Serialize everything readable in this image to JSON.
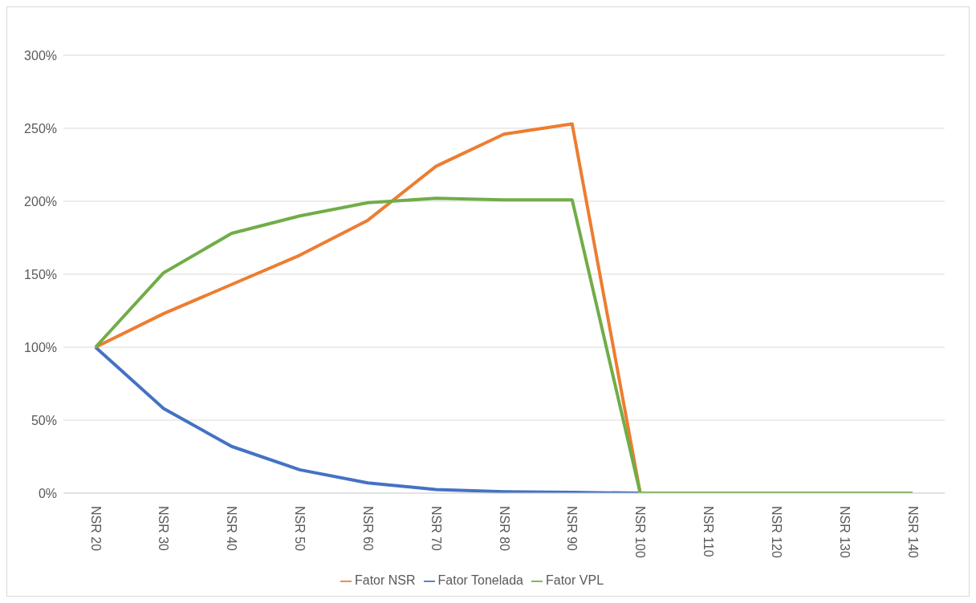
{
  "chart_data": {
    "type": "line",
    "categories": [
      "NSR 20",
      "NSR 30",
      "NSR 40",
      "NSR 50",
      "NSR 60",
      "NSR 70",
      "NSR 80",
      "NSR 90",
      "NSR 100",
      "NSR 110",
      "NSR 120",
      "NSR 130",
      "NSR 140"
    ],
    "series": [
      {
        "name": "Fator Tonelada",
        "color": "#4472c4",
        "values": [
          100,
          58,
          32,
          16,
          7,
          2.5,
          1,
          0.5,
          0,
          null,
          null,
          null,
          null
        ]
      },
      {
        "name": "Fator NSR",
        "color": "#ed7d31",
        "values": [
          100,
          123,
          143,
          163,
          187,
          224,
          246,
          253,
          0,
          null,
          null,
          null,
          null
        ]
      },
      {
        "name": "Fator VPL",
        "color": "#70ad47",
        "values": [
          100,
          151,
          178,
          190,
          199,
          202,
          201,
          201,
          0,
          0,
          0,
          0,
          0
        ]
      }
    ],
    "ylim": [
      0,
      300
    ],
    "yticks": [
      {
        "value": 0,
        "label": "0%"
      },
      {
        "value": 50,
        "label": "50%"
      },
      {
        "value": 100,
        "label": "100%"
      },
      {
        "value": 150,
        "label": "150%"
      },
      {
        "value": 200,
        "label": "200%"
      },
      {
        "value": 250,
        "label": "250%"
      },
      {
        "value": 300,
        "label": "300%"
      }
    ],
    "grid": "y",
    "legend": "bottom",
    "marker": "none",
    "line_style": "solid"
  }
}
